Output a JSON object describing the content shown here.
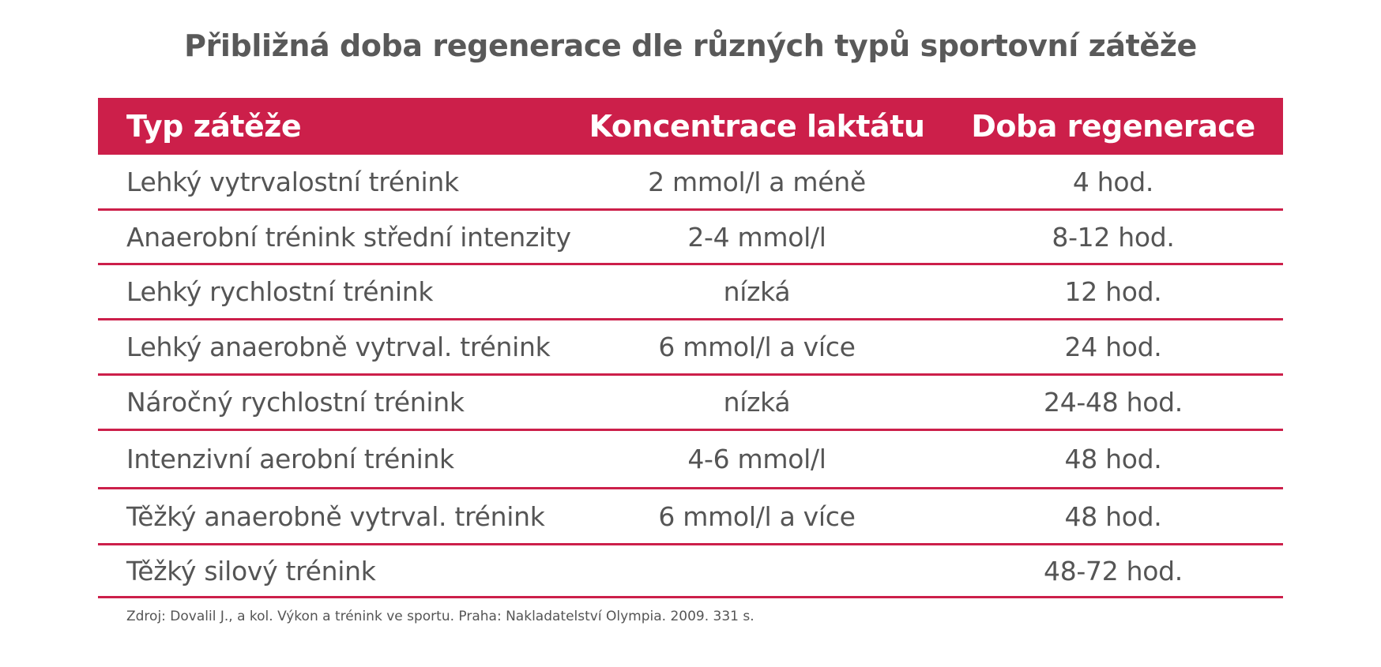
{
  "title": "Přibližná doba regenerace dle různých typů sportovní zátěže",
  "colors": {
    "accent": "#cc1f4a",
    "text": "#555555",
    "header_text": "#ffffff"
  },
  "table": {
    "headers": [
      "Typ zátěže",
      "Koncentrace laktátu",
      "Doba regenerace"
    ],
    "rows": [
      [
        "Lehký vytrvalostní trénink",
        "2 mmol/l a méně",
        "4 hod."
      ],
      [
        "Anaerobní trénink střední intenzity",
        "2-4 mmol/l",
        "8-12 hod."
      ],
      [
        "Lehký rychlostní trénink",
        "nízká",
        "12 hod."
      ],
      [
        "Lehký anaerobně vytrval. trénink",
        "6 mmol/l a více",
        "24 hod."
      ],
      [
        "Náročný rychlostní trénink",
        "nízká",
        "24-48 hod."
      ],
      [
        "Intenzivní aerobní trénink",
        "4-6 mmol/l",
        "48 hod."
      ],
      [
        "Těžký anaerobně vytrval. trénink",
        "6 mmol/l a více",
        "48 hod."
      ],
      [
        "Těžký silový trénink",
        "",
        "48-72 hod."
      ]
    ]
  },
  "source": "Zdroj: Dovalil J., a kol. Výkon a trénink ve sportu. Praha: Nakladatelství Olympia. 2009. 331 s."
}
